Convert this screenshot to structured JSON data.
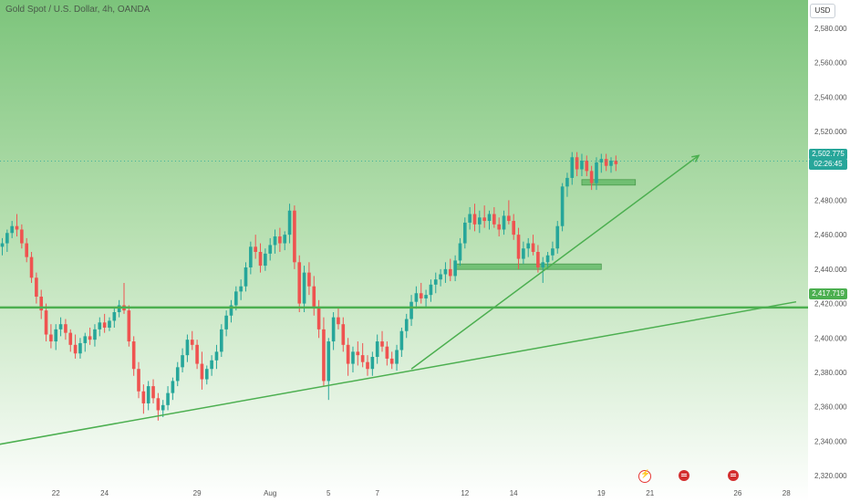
{
  "header": {
    "symbol_title": "Gold Spot / U.S. Dollar, 4h, OANDA",
    "currency_label": "USD"
  },
  "price_tags": {
    "last_price": "2,502.775",
    "countdown": "02:26:45",
    "level_price": "2,417.719"
  },
  "colors": {
    "bull": "#26a69a",
    "bear": "#ef5350",
    "trendline": "#4caf50",
    "zone": "#66bb6a",
    "background_top": "#7cc47b",
    "background_bottom": "#ffffff"
  },
  "event_icons": [
    "flash-icon",
    "us-flag-icon",
    "us-flag-icon"
  ],
  "chart_data": {
    "type": "candlestick",
    "title": "Gold Spot / U.S. Dollar, 4h, OANDA",
    "ylim": [
      2310,
      2590
    ],
    "y_ticks": [
      2320,
      2340,
      2360,
      2380,
      2400,
      2420,
      2440,
      2460,
      2480,
      2500,
      2520,
      2540,
      2560,
      2580
    ],
    "y_tick_labels": [
      "2,320.000",
      "2,340.000",
      "2,360.000",
      "2,380.000",
      "2,400.000",
      "2,420.000",
      "2,440.000",
      "2,460.000",
      "2,480.000",
      "2,500.000",
      "2,520.000",
      "2,540.000",
      "2,560.000",
      "2,580.000"
    ],
    "x_ticks": [
      {
        "label": "22",
        "bar": 11
      },
      {
        "label": "24",
        "bar": 21
      },
      {
        "label": "29",
        "bar": 40
      },
      {
        "label": "Aug",
        "bar": 55
      },
      {
        "label": "5",
        "bar": 67
      },
      {
        "label": "7",
        "bar": 77
      },
      {
        "label": "12",
        "bar": 95
      },
      {
        "label": "14",
        "bar": 105
      },
      {
        "label": "19",
        "bar": 123
      },
      {
        "label": "21",
        "bar": 133
      },
      {
        "label": "26",
        "bar": 151
      },
      {
        "label": "28",
        "bar": 161
      }
    ],
    "grid": false,
    "last_price": 2502.775,
    "horizontal_level": 2417.719,
    "trendlines": [
      {
        "x1": -1,
        "y1": 2338,
        "x2": 163,
        "y2": 2421
      },
      {
        "x1": 84,
        "y1": 2382,
        "x2": 143,
        "y2": 2506
      }
    ],
    "zones": [
      {
        "x_start": 93,
        "x_end": 123,
        "low": 2440,
        "high": 2443
      },
      {
        "x_start": 119,
        "x_end": 130,
        "low": 2489,
        "high": 2492
      }
    ],
    "candles": [
      [
        2453,
        2458,
        2448,
        2455
      ],
      [
        2455,
        2463,
        2450,
        2461
      ],
      [
        2461,
        2468,
        2458,
        2465
      ],
      [
        2465,
        2472,
        2459,
        2463
      ],
      [
        2463,
        2466,
        2452,
        2455
      ],
      [
        2455,
        2458,
        2444,
        2447
      ],
      [
        2447,
        2450,
        2432,
        2435
      ],
      [
        2435,
        2438,
        2420,
        2424
      ],
      [
        2424,
        2428,
        2411,
        2416
      ],
      [
        2416,
        2420,
        2398,
        2402
      ],
      [
        2402,
        2408,
        2394,
        2398
      ],
      [
        2398,
        2408,
        2393,
        2405
      ],
      [
        2405,
        2412,
        2401,
        2408
      ],
      [
        2408,
        2411,
        2399,
        2403
      ],
      [
        2403,
        2405,
        2392,
        2396
      ],
      [
        2396,
        2402,
        2388,
        2391
      ],
      [
        2391,
        2400,
        2388,
        2397
      ],
      [
        2397,
        2403,
        2392,
        2401
      ],
      [
        2401,
        2406,
        2396,
        2399
      ],
      [
        2399,
        2408,
        2395,
        2405
      ],
      [
        2405,
        2412,
        2401,
        2409
      ],
      [
        2409,
        2414,
        2403,
        2406
      ],
      [
        2406,
        2412,
        2404,
        2410
      ],
      [
        2410,
        2418,
        2406,
        2415
      ],
      [
        2415,
        2422,
        2412,
        2419
      ],
      [
        2419,
        2432,
        2414,
        2416
      ],
      [
        2416,
        2419,
        2395,
        2398
      ],
      [
        2398,
        2401,
        2378,
        2382
      ],
      [
        2382,
        2386,
        2365,
        2369
      ],
      [
        2369,
        2373,
        2356,
        2362
      ],
      [
        2362,
        2375,
        2358,
        2372
      ],
      [
        2372,
        2376,
        2362,
        2365
      ],
      [
        2365,
        2368,
        2352,
        2358
      ],
      [
        2358,
        2364,
        2354,
        2361
      ],
      [
        2361,
        2372,
        2358,
        2368
      ],
      [
        2368,
        2377,
        2364,
        2375
      ],
      [
        2375,
        2386,
        2372,
        2383
      ],
      [
        2383,
        2394,
        2380,
        2390
      ],
      [
        2390,
        2402,
        2386,
        2399
      ],
      [
        2399,
        2404,
        2393,
        2396
      ],
      [
        2396,
        2399,
        2382,
        2385
      ],
      [
        2385,
        2392,
        2370,
        2376
      ],
      [
        2376,
        2384,
        2373,
        2382
      ],
      [
        2382,
        2390,
        2378,
        2387
      ],
      [
        2387,
        2396,
        2382,
        2392
      ],
      [
        2392,
        2408,
        2389,
        2405
      ],
      [
        2405,
        2416,
        2401,
        2413
      ],
      [
        2413,
        2422,
        2409,
        2419
      ],
      [
        2419,
        2430,
        2416,
        2427
      ],
      [
        2427,
        2434,
        2422,
        2430
      ],
      [
        2430,
        2444,
        2427,
        2441
      ],
      [
        2441,
        2456,
        2437,
        2453
      ],
      [
        2453,
        2460,
        2446,
        2450
      ],
      [
        2450,
        2455,
        2438,
        2442
      ],
      [
        2442,
        2452,
        2439,
        2449
      ],
      [
        2449,
        2458,
        2445,
        2454
      ],
      [
        2454,
        2463,
        2449,
        2459
      ],
      [
        2459,
        2464,
        2450,
        2455
      ],
      [
        2455,
        2462,
        2451,
        2460
      ],
      [
        2460,
        2478,
        2455,
        2474
      ],
      [
        2474,
        2477,
        2440,
        2444
      ],
      [
        2444,
        2448,
        2415,
        2420
      ],
      [
        2420,
        2442,
        2415,
        2438
      ],
      [
        2438,
        2444,
        2425,
        2430
      ],
      [
        2430,
        2436,
        2413,
        2418
      ],
      [
        2418,
        2422,
        2400,
        2405
      ],
      [
        2405,
        2412,
        2372,
        2375
      ],
      [
        2375,
        2400,
        2364,
        2398
      ],
      [
        2398,
        2415,
        2393,
        2412
      ],
      [
        2412,
        2418,
        2405,
        2408
      ],
      [
        2408,
        2412,
        2392,
        2396
      ],
      [
        2396,
        2400,
        2378,
        2385
      ],
      [
        2385,
        2395,
        2380,
        2392
      ],
      [
        2392,
        2398,
        2384,
        2390
      ],
      [
        2390,
        2397,
        2383,
        2386
      ],
      [
        2386,
        2390,
        2378,
        2382
      ],
      [
        2382,
        2392,
        2378,
        2389
      ],
      [
        2389,
        2402,
        2385,
        2398
      ],
      [
        2398,
        2404,
        2392,
        2395
      ],
      [
        2395,
        2398,
        2384,
        2388
      ],
      [
        2388,
        2392,
        2382,
        2385
      ],
      [
        2385,
        2396,
        2381,
        2393
      ],
      [
        2393,
        2406,
        2389,
        2404
      ],
      [
        2404,
        2414,
        2400,
        2411
      ],
      [
        2411,
        2425,
        2407,
        2421
      ],
      [
        2421,
        2430,
        2417,
        2426
      ],
      [
        2426,
        2432,
        2420,
        2423
      ],
      [
        2423,
        2428,
        2418,
        2425
      ],
      [
        2425,
        2434,
        2421,
        2431
      ],
      [
        2431,
        2438,
        2426,
        2434
      ],
      [
        2434,
        2440,
        2430,
        2437
      ],
      [
        2437,
        2444,
        2432,
        2440
      ],
      [
        2440,
        2446,
        2433,
        2436
      ],
      [
        2436,
        2448,
        2433,
        2445
      ],
      [
        2445,
        2458,
        2442,
        2455
      ],
      [
        2455,
        2470,
        2452,
        2467
      ],
      [
        2467,
        2476,
        2463,
        2472
      ],
      [
        2472,
        2478,
        2462,
        2466
      ],
      [
        2466,
        2474,
        2461,
        2470
      ],
      [
        2470,
        2477,
        2464,
        2468
      ],
      [
        2468,
        2474,
        2463,
        2472
      ],
      [
        2472,
        2476,
        2464,
        2466
      ],
      [
        2466,
        2470,
        2459,
        2463
      ],
      [
        2463,
        2474,
        2460,
        2471
      ],
      [
        2471,
        2480,
        2466,
        2468
      ],
      [
        2468,
        2472,
        2457,
        2460
      ],
      [
        2460,
        2464,
        2440,
        2446
      ],
      [
        2446,
        2456,
        2443,
        2452
      ],
      [
        2452,
        2458,
        2447,
        2455
      ],
      [
        2455,
        2460,
        2448,
        2450
      ],
      [
        2450,
        2454,
        2438,
        2441
      ],
      [
        2441,
        2447,
        2432,
        2444
      ],
      [
        2444,
        2450,
        2440,
        2448
      ],
      [
        2448,
        2456,
        2445,
        2452
      ],
      [
        2452,
        2468,
        2449,
        2465
      ],
      [
        2465,
        2490,
        2462,
        2488
      ],
      [
        2488,
        2496,
        2482,
        2493
      ],
      [
        2493,
        2508,
        2489,
        2505
      ],
      [
        2505,
        2508,
        2494,
        2498
      ],
      [
        2498,
        2507,
        2494,
        2503
      ],
      [
        2503,
        2506,
        2494,
        2497
      ],
      [
        2497,
        2500,
        2486,
        2490
      ],
      [
        2490,
        2505,
        2486,
        2502
      ],
      [
        2502,
        2507,
        2496,
        2504
      ],
      [
        2504,
        2507,
        2497,
        2500
      ],
      [
        2500,
        2505,
        2496,
        2503
      ],
      [
        2503,
        2506,
        2497,
        2501
      ]
    ]
  }
}
